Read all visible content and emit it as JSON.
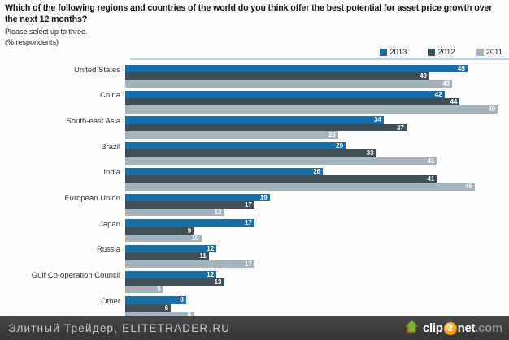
{
  "header": {
    "title": "Which of the following regions and countries of the world do you think offer the best potential for asset price growth over the next 12 months?",
    "subtitle": "Please select up to three.",
    "unit_note": "(% respondents)"
  },
  "chart_data": {
    "type": "bar",
    "orientation": "horizontal",
    "title": "Which of the following regions and countries of the world do you think offer the best potential for asset price growth over the next 12 months?",
    "subtitle": "Please select up to three.",
    "unit_label": "% respondents",
    "categories": [
      "United States",
      "China",
      "South-east Asia",
      "Brazil",
      "India",
      "European Union",
      "Japan",
      "Russia",
      "Gulf Co-operation Council",
      "Other"
    ],
    "series": [
      {
        "name": "2013",
        "color": "#1b6ea5",
        "values": [
          45,
          42,
          34,
          29,
          26,
          19,
          17,
          12,
          12,
          8
        ]
      },
      {
        "name": "2012",
        "color": "#414e56",
        "values": [
          40,
          44,
          37,
          33,
          41,
          17,
          9,
          11,
          13,
          6
        ]
      },
      {
        "name": "2011",
        "color": "#a5b4bb",
        "values": [
          43,
          49,
          28,
          41,
          46,
          13,
          10,
          17,
          5,
          9
        ]
      }
    ],
    "xlim": [
      0,
      49.8
    ],
    "grid": false,
    "value_labels": "inside-end, white bold",
    "legend_position": "top-right"
  },
  "footer": {
    "site_label": "Элитный Трейдер, ELITETRADER.RU",
    "logo": {
      "clip": "clip",
      "two": "2",
      "net": "net",
      "com": ".com"
    }
  }
}
